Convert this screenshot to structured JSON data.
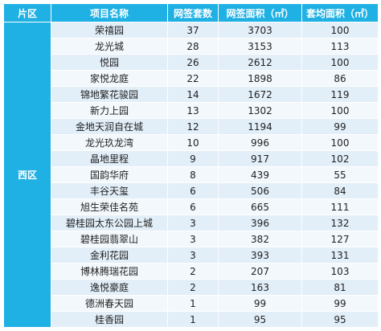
{
  "table": {
    "headers": [
      "片区",
      "项目名称",
      "网签套数",
      "网签面积（㎡）",
      "套均面积（㎡）"
    ],
    "district": "西区",
    "rows": [
      {
        "name": "荣禧园",
        "units": "37",
        "area": "3703",
        "avg": "100"
      },
      {
        "name": "龙光城",
        "units": "28",
        "area": "3153",
        "avg": "113"
      },
      {
        "name": "悦园",
        "units": "26",
        "area": "2612",
        "avg": "100"
      },
      {
        "name": "家悦龙庭",
        "units": "22",
        "area": "1898",
        "avg": "86"
      },
      {
        "name": "锦地繁花骏园",
        "units": "14",
        "area": "1672",
        "avg": "119"
      },
      {
        "name": "新力上园",
        "units": "13",
        "area": "1302",
        "avg": "100"
      },
      {
        "name": "金地天润自在城",
        "units": "12",
        "area": "1194",
        "avg": "99"
      },
      {
        "name": "龙光玖龙湾",
        "units": "10",
        "area": "996",
        "avg": "100"
      },
      {
        "name": "晶地里程",
        "units": "9",
        "area": "917",
        "avg": "102"
      },
      {
        "name": "国韵华府",
        "units": "8",
        "area": "439",
        "avg": "55"
      },
      {
        "name": "丰谷天玺",
        "units": "6",
        "area": "506",
        "avg": "84"
      },
      {
        "name": "旭生荣佳名苑",
        "units": "6",
        "area": "665",
        "avg": "111"
      },
      {
        "name": "碧桂园太东公园上城",
        "units": "3",
        "area": "396",
        "avg": "132"
      },
      {
        "name": "碧桂园翡翠山",
        "units": "3",
        "area": "382",
        "avg": "127"
      },
      {
        "name": "金利花园",
        "units": "3",
        "area": "393",
        "avg": "131"
      },
      {
        "name": "博林腾瑞花园",
        "units": "2",
        "area": "207",
        "avg": "103"
      },
      {
        "name": "逸悦豪庭",
        "units": "2",
        "area": "163",
        "avg": "81"
      },
      {
        "name": "德洲春天园",
        "units": "1",
        "area": "99",
        "avg": "99"
      },
      {
        "name": "桂香园",
        "units": "1",
        "area": "95",
        "avg": "95"
      }
    ]
  }
}
